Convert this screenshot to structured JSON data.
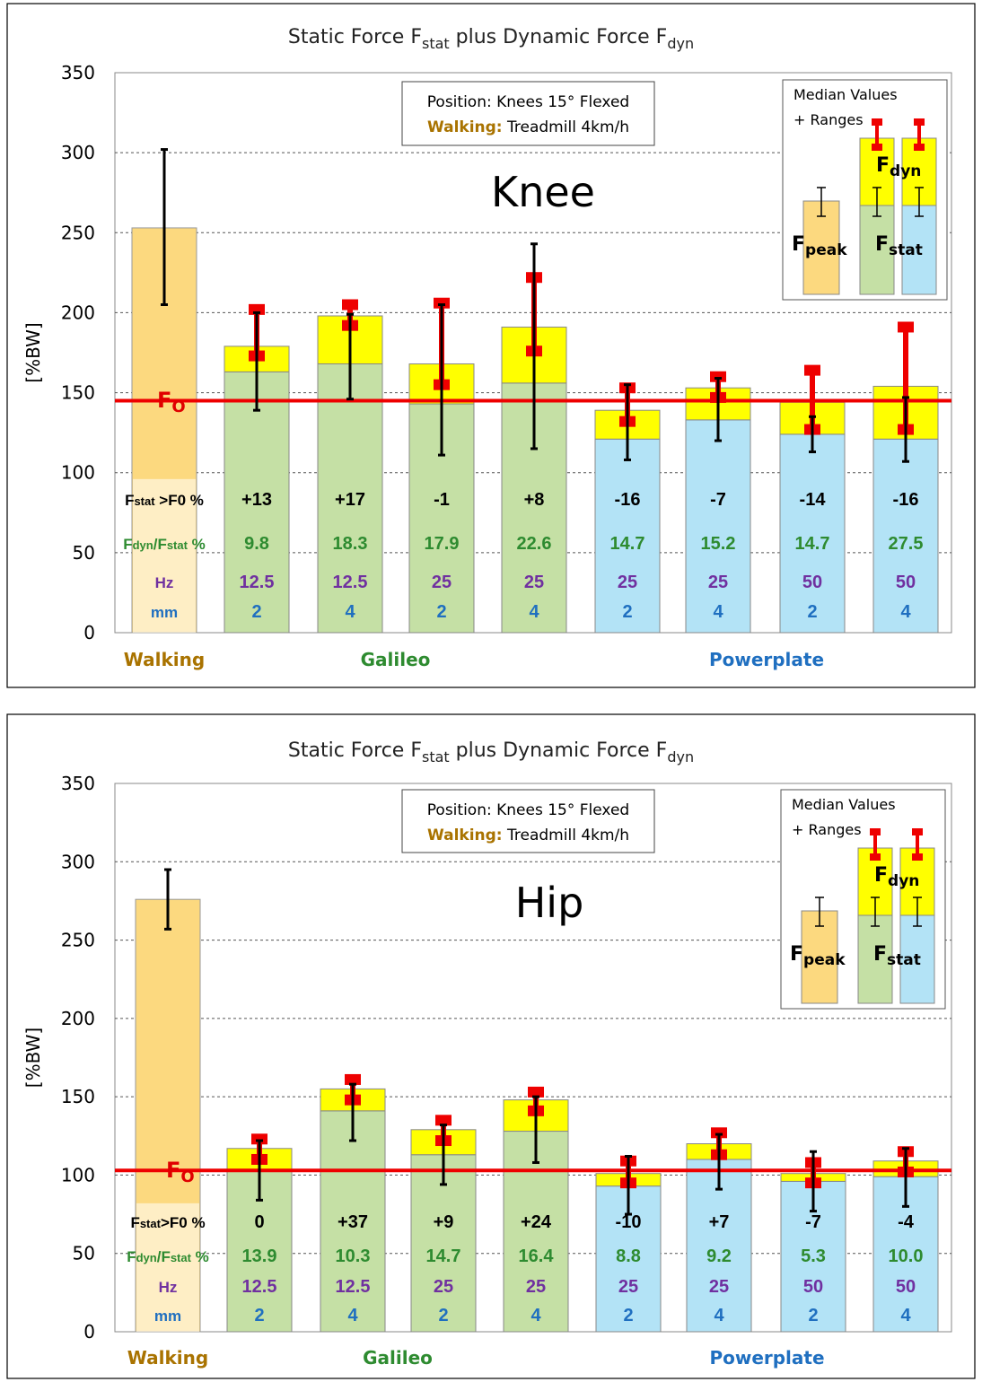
{
  "colors": {
    "walking": "#fcd97f",
    "galileo": "#c5e0a5",
    "powerplate": "#b3e3f6",
    "fdyn": "#ffff00",
    "red": "#ee0000",
    "row_black": "#000000",
    "row_green": "#2e8b30",
    "row_purple": "#7030a0",
    "row_blue": "#1f6fc0",
    "walking_text": "#a97300",
    "galileo_text": "#2e8b30",
    "powerplate_text": "#1f6fc0"
  },
  "chart_data": [
    {
      "type": "bar",
      "title": "Static Force F_stat plus Dynamic Force F_dyn",
      "title_parts": {
        "a": "Static Force F",
        "b": "stat",
        "c": " plus Dynamic Force F",
        "d": "dyn"
      },
      "panel_label": "Knee",
      "ylabel": "[%BW]",
      "ylim": [
        0,
        350
      ],
      "yticks": [
        "0",
        "50",
        "100",
        "150",
        "200",
        "250",
        "300",
        "350"
      ],
      "grid": true,
      "position_box": {
        "line1": "Position: Knees 15° Flexed",
        "line2_label": "Walking:",
        "line2_value": " Treadmill 4km/h"
      },
      "legend_box": {
        "line1": "Median Values",
        "line2": "+ Ranges",
        "fdyn_main": "F",
        "fdyn_sub": "dyn",
        "fpeak_main": "F",
        "fpeak_sub": "peak",
        "fstat_main": "F",
        "fstat_sub": "stat"
      },
      "f0": {
        "label_main": "F",
        "label_sub": "O",
        "value": 145
      },
      "groups": [
        "Walking",
        "Galileo",
        "Powerplate"
      ],
      "row_labels": {
        "fstat_main": "F",
        "fstat_sub": "stat",
        "fstat_rest": " >F0 %",
        "fdyn_main": "F",
        "fdyn_sub": "dyn",
        "fdyn_rest": "/F",
        "fdyn_sub2": "stat",
        "fdyn_end": " %",
        "hz": "Hz",
        "mm": "mm"
      },
      "bars": [
        {
          "device": "walking",
          "peak": 253,
          "range": [
            205,
            302
          ]
        },
        {
          "device": "galileo",
          "stat": 163,
          "total": 179,
          "stat_range": [
            139,
            200
          ],
          "total_range": [
            173,
            202
          ],
          "fstat_vs_f0": "+13",
          "fdyn_fstat": "9.8",
          "hz": "12.5",
          "mm": "2"
        },
        {
          "device": "galileo",
          "stat": 168,
          "total": 198,
          "stat_range": [
            146,
            199
          ],
          "total_range": [
            192,
            205
          ],
          "fstat_vs_f0": "+17",
          "fdyn_fstat": "18.3",
          "hz": "12.5",
          "mm": "4"
        },
        {
          "device": "galileo",
          "stat": 143,
          "total": 168,
          "stat_range": [
            111,
            205
          ],
          "total_range": [
            155,
            206
          ],
          "fstat_vs_f0": "-1",
          "fdyn_fstat": "17.9",
          "hz": "25",
          "mm": "2"
        },
        {
          "device": "galileo",
          "stat": 156,
          "total": 191,
          "stat_range": [
            115,
            243
          ],
          "total_range": [
            176,
            222
          ],
          "fstat_vs_f0": "+8",
          "fdyn_fstat": "22.6",
          "hz": "25",
          "mm": "4"
        },
        {
          "device": "powerplate",
          "stat": 121,
          "total": 139,
          "stat_range": [
            108,
            155
          ],
          "total_range": [
            132,
            153
          ],
          "fstat_vs_f0": "-16",
          "fdyn_fstat": "14.7",
          "hz": "25",
          "mm": "2"
        },
        {
          "device": "powerplate",
          "stat": 133,
          "total": 153,
          "stat_range": [
            120,
            159
          ],
          "total_range": [
            147,
            160
          ],
          "fstat_vs_f0": "-7",
          "fdyn_fstat": "15.2",
          "hz": "25",
          "mm": "4"
        },
        {
          "device": "powerplate",
          "stat": 124,
          "total": 144,
          "stat_range": [
            113,
            135
          ],
          "total_range": [
            127,
            164
          ],
          "fstat_vs_f0": "-14",
          "fdyn_fstat": "14.7",
          "hz": "50",
          "mm": "2"
        },
        {
          "device": "powerplate",
          "stat": 121,
          "total": 154,
          "stat_range": [
            107,
            147
          ],
          "total_range": [
            127,
            191
          ],
          "fstat_vs_f0": "-16",
          "fdyn_fstat": "27.5",
          "hz": "50",
          "mm": "4"
        }
      ]
    },
    {
      "type": "bar",
      "title": "Static Force F_stat plus Dynamic Force F_dyn",
      "title_parts": {
        "a": "Static Force F",
        "b": "stat",
        "c": " plus Dynamic Force F",
        "d": "dyn"
      },
      "panel_label": "Hip",
      "ylabel": "[%BW]",
      "ylim": [
        0,
        350
      ],
      "yticks": [
        "0",
        "50",
        "100",
        "150",
        "200",
        "250",
        "300",
        "350"
      ],
      "grid": true,
      "position_box": {
        "line1": "Position: Knees 15° Flexed",
        "line2_label": "Walking:",
        "line2_value": " Treadmill 4km/h"
      },
      "legend_box": {
        "line1": "Median Values",
        "line2": "+ Ranges",
        "fdyn_main": "F",
        "fdyn_sub": "dyn",
        "fpeak_main": "F",
        "fpeak_sub": "peak",
        "fstat_main": "F",
        "fstat_sub": "stat"
      },
      "f0": {
        "label_main": "F",
        "label_sub": "O",
        "value": 103
      },
      "groups": [
        "Walking",
        "Galileo",
        "Powerplate"
      ],
      "row_labels": {
        "fstat_main": "F",
        "fstat_sub": "stat",
        "fstat_rest": ">F0 %",
        "fdyn_main": "F",
        "fdyn_sub": "dyn",
        "fdyn_rest": "/F",
        "fdyn_sub2": "stat",
        "fdyn_end": " %",
        "hz": "Hz",
        "mm": "mm"
      },
      "bars": [
        {
          "device": "walking",
          "peak": 276,
          "range": [
            257,
            295
          ]
        },
        {
          "device": "galileo",
          "stat": 103,
          "total": 117,
          "stat_range": [
            84,
            122
          ],
          "total_range": [
            110,
            123
          ],
          "fstat_vs_f0": "0",
          "fdyn_fstat": "13.9",
          "hz": "12.5",
          "mm": "2"
        },
        {
          "device": "galileo",
          "stat": 141,
          "total": 155,
          "stat_range": [
            122,
            158
          ],
          "total_range": [
            148,
            161
          ],
          "fstat_vs_f0": "+37",
          "fdyn_fstat": "10.3",
          "hz": "12.5",
          "mm": "4"
        },
        {
          "device": "galileo",
          "stat": 113,
          "total": 129,
          "stat_range": [
            94,
            132
          ],
          "total_range": [
            122,
            135
          ],
          "fstat_vs_f0": "+9",
          "fdyn_fstat": "14.7",
          "hz": "25",
          "mm": "2"
        },
        {
          "device": "galileo",
          "stat": 128,
          "total": 148,
          "stat_range": [
            108,
            150
          ],
          "total_range": [
            141,
            153
          ],
          "fstat_vs_f0": "+24",
          "fdyn_fstat": "16.4",
          "hz": "25",
          "mm": "4"
        },
        {
          "device": "powerplate",
          "stat": 93,
          "total": 101,
          "stat_range": [
            75,
            112
          ],
          "total_range": [
            95,
            109
          ],
          "fstat_vs_f0": "-10",
          "fdyn_fstat": "8.8",
          "hz": "25",
          "mm": "2"
        },
        {
          "device": "powerplate",
          "stat": 110,
          "total": 120,
          "stat_range": [
            91,
            126
          ],
          "total_range": [
            113,
            127
          ],
          "fstat_vs_f0": "+7",
          "fdyn_fstat": "9.2",
          "hz": "25",
          "mm": "4"
        },
        {
          "device": "powerplate",
          "stat": 96,
          "total": 101,
          "stat_range": [
            77,
            115
          ],
          "total_range": [
            95,
            108
          ],
          "fstat_vs_f0": "-7",
          "fdyn_fstat": "5.3",
          "hz": "50",
          "mm": "2"
        },
        {
          "device": "powerplate",
          "stat": 99,
          "total": 109,
          "stat_range": [
            80,
            117
          ],
          "total_range": [
            102,
            115
          ],
          "fstat_vs_f0": "-4",
          "fdyn_fstat": "10.0",
          "hz": "50",
          "mm": "4"
        }
      ]
    }
  ]
}
